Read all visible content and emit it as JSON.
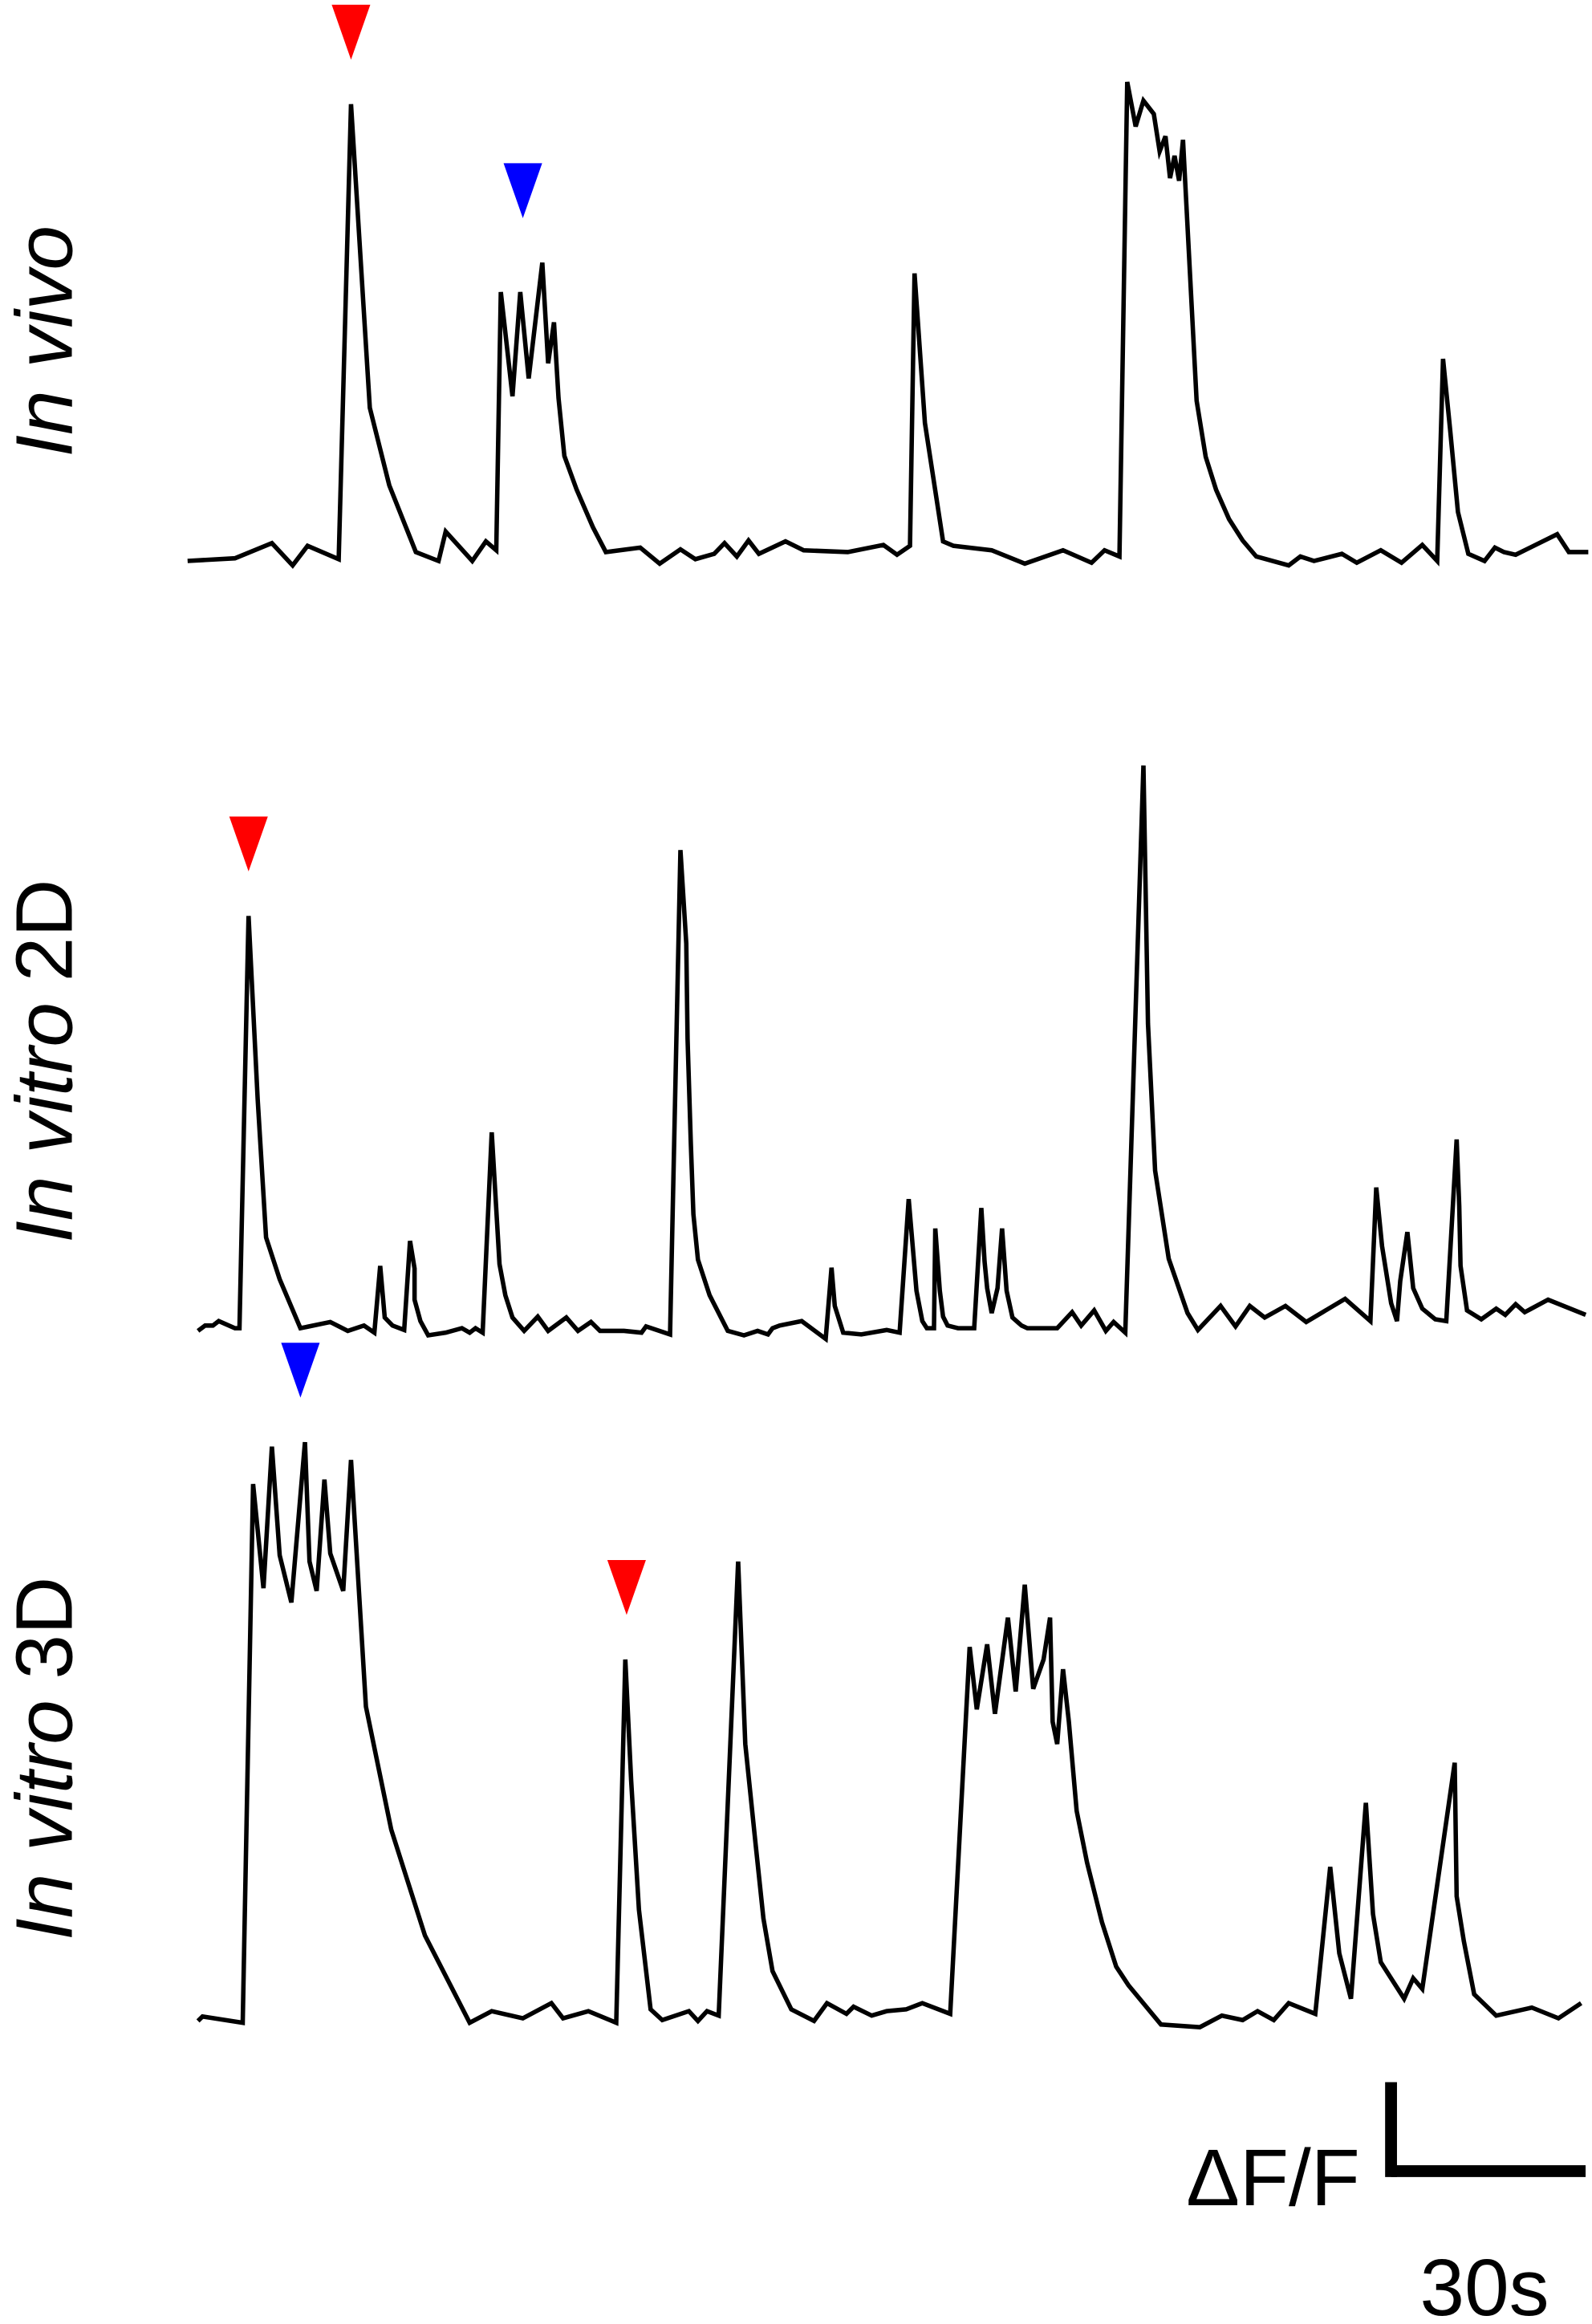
{
  "chart_data": [
    {
      "type": "line",
      "title": [
        "In vivo"
      ],
      "x": [
        0,
        7.3,
        13.0,
        16.2,
        18.5,
        23.3,
        25.2,
        28.1,
        31.1,
        35.2,
        38.7,
        39.8,
        43.9,
        46.0,
        47.6,
        48.3,
        50.1,
        51.3,
        52.6,
        54.7,
        55.6,
        56.5,
        57.2,
        58.1,
        60.0,
        62.5,
        64.5,
        69.8,
        72.8,
        76.0,
        78.3,
        81.2,
        82.8,
        84.7,
        86.5,
        88.1,
        92.2,
        95.0,
        101.8,
        107.3,
        109.4,
        111.4,
        112.1,
        113.7,
        116.5,
        118.1,
        124.0,
        129.1,
        135.0,
        139.4,
        141.4,
        143.7,
        144.9,
        146.2,
        147.4,
        149.0,
        149.9,
        150.8,
        151.5,
        152.2,
        152.9,
        153.5,
        155.6,
        157.0,
        158.6,
        160.6,
        162.7,
        164.8,
        169.8,
        171.6,
        173.7,
        178.0,
        180.3,
        184.0,
        187.2,
        190.4,
        192.7,
        193.6,
        194.7,
        195.9,
        197.5,
        200.0,
        201.6,
        203.0,
        204.8,
        211.2,
        213.0,
        216.0
      ],
      "series": [
        {
          "color": "#000000",
          "values": [
            0,
            0.03,
            0.2,
            -0.05,
            0.17,
            0.02,
            5.13,
            1.72,
            0.85,
            0.1,
            0,
            0.33,
            0,
            0.22,
            0.12,
            3.02,
            1.85,
            3.02,
            2.05,
            3.35,
            2.22,
            2.68,
            1.83,
            1.18,
            0.8,
            0.38,
            0.1,
            0.15,
            -0.03,
            0.13,
            0.02,
            0.08,
            0.2,
            0.05,
            0.23,
            0.08,
            0.22,
            0.12,
            0.1,
            0.18,
            0.07,
            0.17,
            3.23,
            1.55,
            0.22,
            0.17,
            0.12,
            -0.03,
            0.12,
            -0.02,
            0.12,
            0.05,
            5.38,
            4.88,
            5.17,
            5.02,
            4.6,
            4.77,
            4.3,
            4.55,
            4.27,
            4.73,
            1.8,
            1.17,
            0.8,
            0.47,
            0.23,
            0.05,
            -0.05,
            0.05,
            0,
            0.08,
            -0.02,
            0.12,
            -0.02,
            0.18,
            0,
            2.27,
            1.47,
            0.55,
            0.08,
            0,
            0.15,
            0.1,
            0.07,
            0.3,
            0.1,
            0.1
          ]
        }
      ],
      "markers": [
        {
          "x": 25.2,
          "color": "#ff0000"
        },
        {
          "x": 51.7,
          "color": "#0000ff"
        }
      ]
    },
    {
      "type": "line",
      "title": [
        "In vitro",
        "2D"
      ],
      "x": [
        1.6,
        2.7,
        3.9,
        4.8,
        7.3,
        8.0,
        9.4,
        10.8,
        12.1,
        14.2,
        17.4,
        22.0,
        24.7,
        27.2,
        28.8,
        29.7,
        30.4,
        31.6,
        33.4,
        34.3,
        35.0,
        35.0,
        35.9,
        37.1,
        39.8,
        42.3,
        43.5,
        44.4,
        45.5,
        46.9,
        48.1,
        49.0,
        50.1,
        51.9,
        54.0,
        55.6,
        58.4,
        60.2,
        62.2,
        63.6,
        67.3,
        70.0,
        70.7,
        74.4,
        76.0,
        76.9,
        77.1,
        77.6,
        78.0,
        78.7,
        80.5,
        83.3,
        85.8,
        87.9,
        89.5,
        90.2,
        91.3,
        94.7,
        98.4,
        99.3,
        99.8,
        101.1,
        103.9,
        107.8,
        109.8,
        111.2,
        112.4,
        113.3,
        114.0,
        115.1,
        115.3,
        116.0,
        116.5,
        117.2,
        118.8,
        121.3,
        122.4,
        122.9,
        123.3,
        124.0,
        124.9,
        125.6,
        126.3,
        127.2,
        128.6,
        129.5,
        134.1,
        136.4,
        137.8,
        139.8,
        141.6,
        142.8,
        144.6,
        147.4,
        148.1,
        149.2,
        151.3,
        154.2,
        155.8,
        159.3,
        161.6,
        163.8,
        166.1,
        169.3,
        172.5,
        178.5,
        182.4,
        183.3,
        184.2,
        185.6,
        186.5,
        187.0,
        188.1,
        189.0,
        190.4,
        192.4,
        194.1,
        195.7,
        196.1,
        196.3,
        197.3,
        199.5,
        201.8,
        203.2,
        204.8,
        206.2,
        209.8,
        215.6
      ],
      "series": [
        {
          "color": "#000000",
          "values": [
            -0.03,
            0.03,
            0.03,
            0.08,
            0,
            0,
            4.63,
            2.58,
            1.02,
            0.55,
            0,
            0.07,
            -0.03,
            0.03,
            -0.05,
            0.7,
            0.12,
            0.03,
            -0.02,
            0.98,
            0.67,
            0.32,
            0.08,
            -0.08,
            -0.05,
            0,
            -0.05,
            0,
            -0.05,
            2.2,
            0.72,
            0.37,
            0.12,
            -0.03,
            0.13,
            -0.03,
            0.12,
            -0.03,
            0.07,
            -0.03,
            -0.03,
            -0.05,
            0.02,
            -0.07,
            5.37,
            4.32,
            3.25,
            2.08,
            1.28,
            0.77,
            0.37,
            -0.03,
            -0.08,
            -0.03,
            -0.07,
            0,
            0.03,
            0.08,
            -0.12,
            0.68,
            0.25,
            -0.05,
            -0.07,
            -0.02,
            -0.05,
            1.45,
            0.42,
            0.08,
            0,
            0,
            1.12,
            0.42,
            0.13,
            0.03,
            0,
            0,
            1.35,
            0.75,
            0.45,
            0.17,
            0.45,
            1.12,
            0.42,
            0.12,
            0.03,
            0,
            0,
            0.18,
            0.03,
            0.2,
            -0.03,
            0.07,
            -0.05,
            6.32,
            3.42,
            1.77,
            0.78,
            0.17,
            -0.02,
            0.25,
            0.02,
            0.25,
            0.12,
            0.25,
            0.07,
            0.33,
            0.08,
            1.58,
            0.92,
            0.28,
            0.08,
            0.53,
            1.08,
            0.45,
            0.22,
            0.1,
            0.08,
            2.12,
            1.37,
            0.7,
            0.2,
            0.1,
            0.22,
            0.15,
            0.27,
            0.18,
            0.32,
            0.15
          ]
        }
      ],
      "markers": [
        {
          "x": 9.4,
          "color": "#ff0000"
        }
      ]
    },
    {
      "type": "line",
      "title": [
        "In vitro",
        "3D"
      ],
      "x": [
        1.6,
        2.3,
        8.5,
        10.1,
        11.7,
        13.0,
        14.2,
        16.0,
        18.1,
        18.8,
        19.9,
        21.1,
        22.0,
        24.0,
        25.2,
        27.5,
        31.4,
        36.6,
        43.5,
        46.9,
        51.7,
        56.1,
        57.9,
        61.8,
        66.1,
        67.5,
        68.4,
        69.6,
        71.4,
        73.2,
        77.3,
        78.7,
        80.1,
        81.9,
        84.9,
        86.0,
        87.6,
        88.8,
        90.2,
        93.1,
        96.6,
        98.6,
        101.6,
        102.7,
        105.5,
        107.8,
        110.8,
        113.3,
        117.6,
        120.6,
        121.7,
        123.3,
        124.5,
        126.5,
        127.7,
        129.1,
        130.4,
        132.0,
        133.0,
        133.4,
        134.1,
        135.0,
        135.9,
        137.1,
        138.7,
        141.0,
        143.2,
        145.1,
        150.1,
        156.1,
        159.5,
        162.7,
        165.0,
        167.5,
        169.8,
        173.9,
        176.2,
        177.6,
        179.4,
        181.7,
        182.8,
        184.0,
        187.6,
        189.0,
        190.4,
        195.4,
        195.7,
        196.8,
        198.4,
        201.8,
        207.3,
        211.4,
        214.9
      ],
      "series": [
        {
          "color": "#000000",
          "values": [
            -0.03,
            0.02,
            -0.05,
            6.0,
            4.83,
            6.42,
            5.2,
            4.67,
            6.47,
            5.13,
            4.8,
            6.05,
            5.22,
            4.8,
            6.27,
            3.5,
            2.12,
            0.93,
            -0.05,
            0.08,
            0,
            0.17,
            0,
            0.08,
            -0.05,
            4.03,
            2.67,
            1.22,
            0.1,
            -0.02,
            0.08,
            -0.03,
            0.08,
            0.03,
            5.13,
            3.08,
            1.95,
            1.12,
            0.53,
            0.1,
            -0.03,
            0.17,
            0.05,
            0.13,
            0.03,
            0.08,
            0.1,
            0.17,
            0.05,
            4.17,
            3.47,
            4.2,
            3.42,
            4.5,
            3.67,
            4.87,
            3.7,
            4.03,
            4.5,
            3.33,
            3.08,
            3.92,
            3.33,
            2.33,
            1.75,
            1.08,
            0.58,
            0.37,
            -0.07,
            -0.1,
            0.03,
            -0.02,
            0.08,
            -0.02,
            0.17,
            0.05,
            1.7,
            0.73,
            0.22,
            2.42,
            1.17,
            0.63,
            0.22,
            0.45,
            0.33,
            2.87,
            1.37,
            0.87,
            0.27,
            0.03,
            0.12,
            0,
            0.17
          ]
        }
      ],
      "markers": [
        {
          "x": 17.4,
          "color": "#0000ff"
        },
        {
          "x": 67.7,
          "color": "#ff0000"
        }
      ]
    }
  ],
  "scale_bar": {
    "y_label": "ΔF/F",
    "x_label": "30s",
    "x_value": 30
  }
}
